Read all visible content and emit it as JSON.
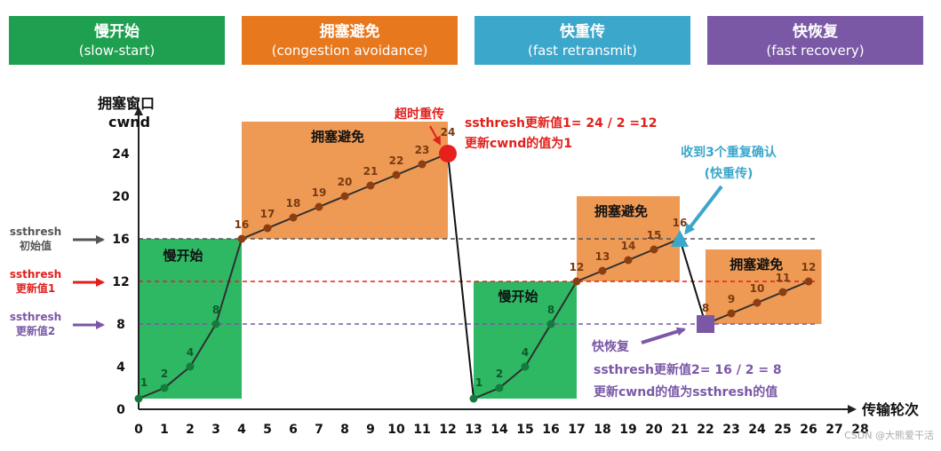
{
  "phases": [
    {
      "name": "慢开始",
      "en": "(slow-start)",
      "color": "#1fa050"
    },
    {
      "name": "拥塞避免",
      "en": "(congestion avoidance)",
      "color": "#e8781e"
    },
    {
      "name": "快重传",
      "en": "(fast retransmit)",
      "color": "#3ba7cb"
    },
    {
      "name": "快恢复",
      "en": "(fast recovery)",
      "color": "#7a58a6"
    }
  ],
  "axis": {
    "y_title_1": "拥塞窗口",
    "y_title_2": "cwnd",
    "x_title": "传输轮次",
    "x_ticks": [
      "0",
      "1",
      "2",
      "3",
      "4",
      "5",
      "6",
      "7",
      "8",
      "9",
      "10",
      "11",
      "12",
      "13",
      "14",
      "15",
      "16",
      "17",
      "18",
      "19",
      "20",
      "21",
      "22",
      "23",
      "24",
      "25",
      "26",
      "27",
      "28"
    ],
    "y_ticks": [
      "0",
      "4",
      "8",
      "12",
      "16",
      "20",
      "24"
    ]
  },
  "ssthresh_labels": [
    {
      "line1": "ssthresh",
      "line2": "初始值",
      "color": "#555555",
      "value": 16
    },
    {
      "line1": "ssthresh",
      "line2": "更新值1",
      "color": "#e0201c",
      "value": 12
    },
    {
      "line1": "ssthresh",
      "line2": "更新值2",
      "color": "#7a58a6",
      "value": 8
    }
  ],
  "regions": [
    {
      "label": "慢开始",
      "x0": 0,
      "x1": 4,
      "y0": 1,
      "y1": 16,
      "color": "#2eb864"
    },
    {
      "label": "拥塞避免",
      "x0": 4,
      "x1": 12,
      "y0": 16,
      "y1": 27,
      "color": "#ee9a55"
    },
    {
      "label": "慢开始",
      "x0": 13,
      "x1": 17,
      "y0": 1,
      "y1": 12,
      "color": "#2eb864"
    },
    {
      "label": "拥塞避免",
      "x0": 17,
      "x1": 21,
      "y0": 12,
      "y1": 20,
      "color": "#ee9a55"
    },
    {
      "label": "拥塞避免",
      "x0": 22,
      "x1": 26.5,
      "y0": 8,
      "y1": 15,
      "color": "#ee9a55"
    }
  ],
  "annotations": {
    "timeout": "超时重传",
    "update1_line1": "ssthresh更新值1= 24 / 2 =12",
    "update1_line2": "更新cwnd的值为1",
    "triple_ack_1": "收到3个重复确认",
    "triple_ack_2": "(快重传)",
    "fast_recovery": "快恢复",
    "update2_line1": "ssthresh更新值2= 16 / 2 = 8",
    "update2_line2": "更新cwnd的值为ssthresh的值"
  },
  "watermark": "CSDN @大熊爱干活",
  "chart_data": {
    "type": "line",
    "xlabel": "传输轮次",
    "ylabel": "拥塞窗口 cwnd",
    "xlim": [
      0,
      28
    ],
    "ylim": [
      0,
      24
    ],
    "reference_lines": [
      16,
      12,
      8
    ],
    "series": [
      {
        "values": [
          [
            0,
            1
          ],
          [
            1,
            2
          ],
          [
            2,
            4
          ],
          [
            3,
            8
          ],
          [
            4,
            16
          ],
          [
            5,
            17
          ],
          [
            6,
            18
          ],
          [
            7,
            19
          ],
          [
            8,
            20
          ],
          [
            9,
            21
          ],
          [
            10,
            22
          ],
          [
            11,
            23
          ],
          [
            12,
            24
          ]
        ]
      },
      {
        "values": [
          [
            13,
            1
          ],
          [
            14,
            2
          ],
          [
            15,
            4
          ],
          [
            16,
            8
          ],
          [
            17,
            12
          ],
          [
            18,
            13
          ],
          [
            19,
            14
          ],
          [
            20,
            15
          ],
          [
            21,
            16
          ]
        ]
      },
      {
        "values": [
          [
            22,
            8
          ],
          [
            23,
            9
          ],
          [
            24,
            10
          ],
          [
            25,
            11
          ],
          [
            26,
            12
          ]
        ]
      }
    ],
    "drops": [
      [
        [
          12,
          24
        ],
        [
          13,
          1
        ]
      ],
      [
        [
          21,
          16
        ],
        [
          22,
          8
        ]
      ]
    ],
    "point_labels": [
      {
        "x": 0,
        "y": 1,
        "text": "1"
      },
      {
        "x": 1,
        "y": 2,
        "text": "2"
      },
      {
        "x": 2,
        "y": 4,
        "text": "4"
      },
      {
        "x": 3,
        "y": 8,
        "text": "8"
      },
      {
        "x": 4,
        "y": 16,
        "text": "16"
      },
      {
        "x": 5,
        "y": 17,
        "text": "17"
      },
      {
        "x": 6,
        "y": 18,
        "text": "18"
      },
      {
        "x": 7,
        "y": 19,
        "text": "19"
      },
      {
        "x": 8,
        "y": 20,
        "text": "20"
      },
      {
        "x": 9,
        "y": 21,
        "text": "21"
      },
      {
        "x": 10,
        "y": 22,
        "text": "22"
      },
      {
        "x": 11,
        "y": 23,
        "text": "23"
      },
      {
        "x": 12,
        "y": 24,
        "text": "24"
      },
      {
        "x": 13,
        "y": 1,
        "text": "1"
      },
      {
        "x": 14,
        "y": 2,
        "text": "2"
      },
      {
        "x": 15,
        "y": 4,
        "text": "4"
      },
      {
        "x": 16,
        "y": 8,
        "text": "8"
      },
      {
        "x": 17,
        "y": 12,
        "text": "12"
      },
      {
        "x": 18,
        "y": 13,
        "text": "13"
      },
      {
        "x": 19,
        "y": 14,
        "text": "14"
      },
      {
        "x": 20,
        "y": 15,
        "text": "15"
      },
      {
        "x": 21,
        "y": 16,
        "text": "16"
      },
      {
        "x": 22,
        "y": 8,
        "text": "8"
      },
      {
        "x": 23,
        "y": 9,
        "text": "9"
      },
      {
        "x": 24,
        "y": 10,
        "text": "10"
      },
      {
        "x": 25,
        "y": 11,
        "text": "11"
      },
      {
        "x": 26,
        "y": 12,
        "text": "12"
      }
    ]
  }
}
